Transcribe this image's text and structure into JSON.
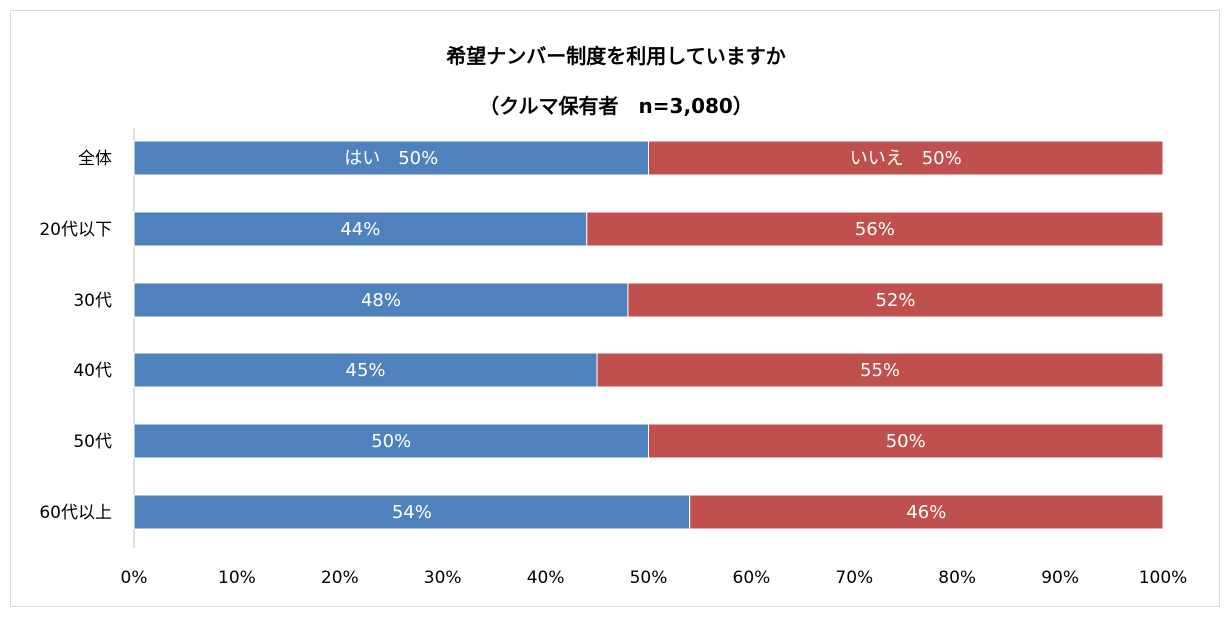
{
  "chart_data": {
    "type": "bar",
    "orientation": "horizontal",
    "stacked": "percent",
    "title": "希望ナンバー制度を利用していますか",
    "subtitle": "（クルマ保有者　n=3,080）",
    "categories": [
      "全体",
      "20代以下",
      "30代",
      "40代",
      "50代",
      "60代以上"
    ],
    "series": [
      {
        "name": "はい",
        "color": "#4f81bd",
        "values": [
          50,
          44,
          48,
          45,
          50,
          54
        ]
      },
      {
        "name": "いいえ",
        "color": "#c0504d",
        "values": [
          50,
          56,
          52,
          55,
          50,
          46
        ]
      }
    ],
    "bar_labels": [
      [
        "はい　50%",
        "いいえ　50%"
      ],
      [
        "44%",
        "56%"
      ],
      [
        "48%",
        "52%"
      ],
      [
        "45%",
        "55%"
      ],
      [
        "50%",
        "50%"
      ],
      [
        "54%",
        "46%"
      ]
    ],
    "x_ticks": [
      "0%",
      "10%",
      "20%",
      "30%",
      "40%",
      "50%",
      "60%",
      "70%",
      "80%",
      "90%",
      "100%"
    ],
    "xlim": [
      0,
      100
    ],
    "grid": false,
    "legend": "none"
  }
}
